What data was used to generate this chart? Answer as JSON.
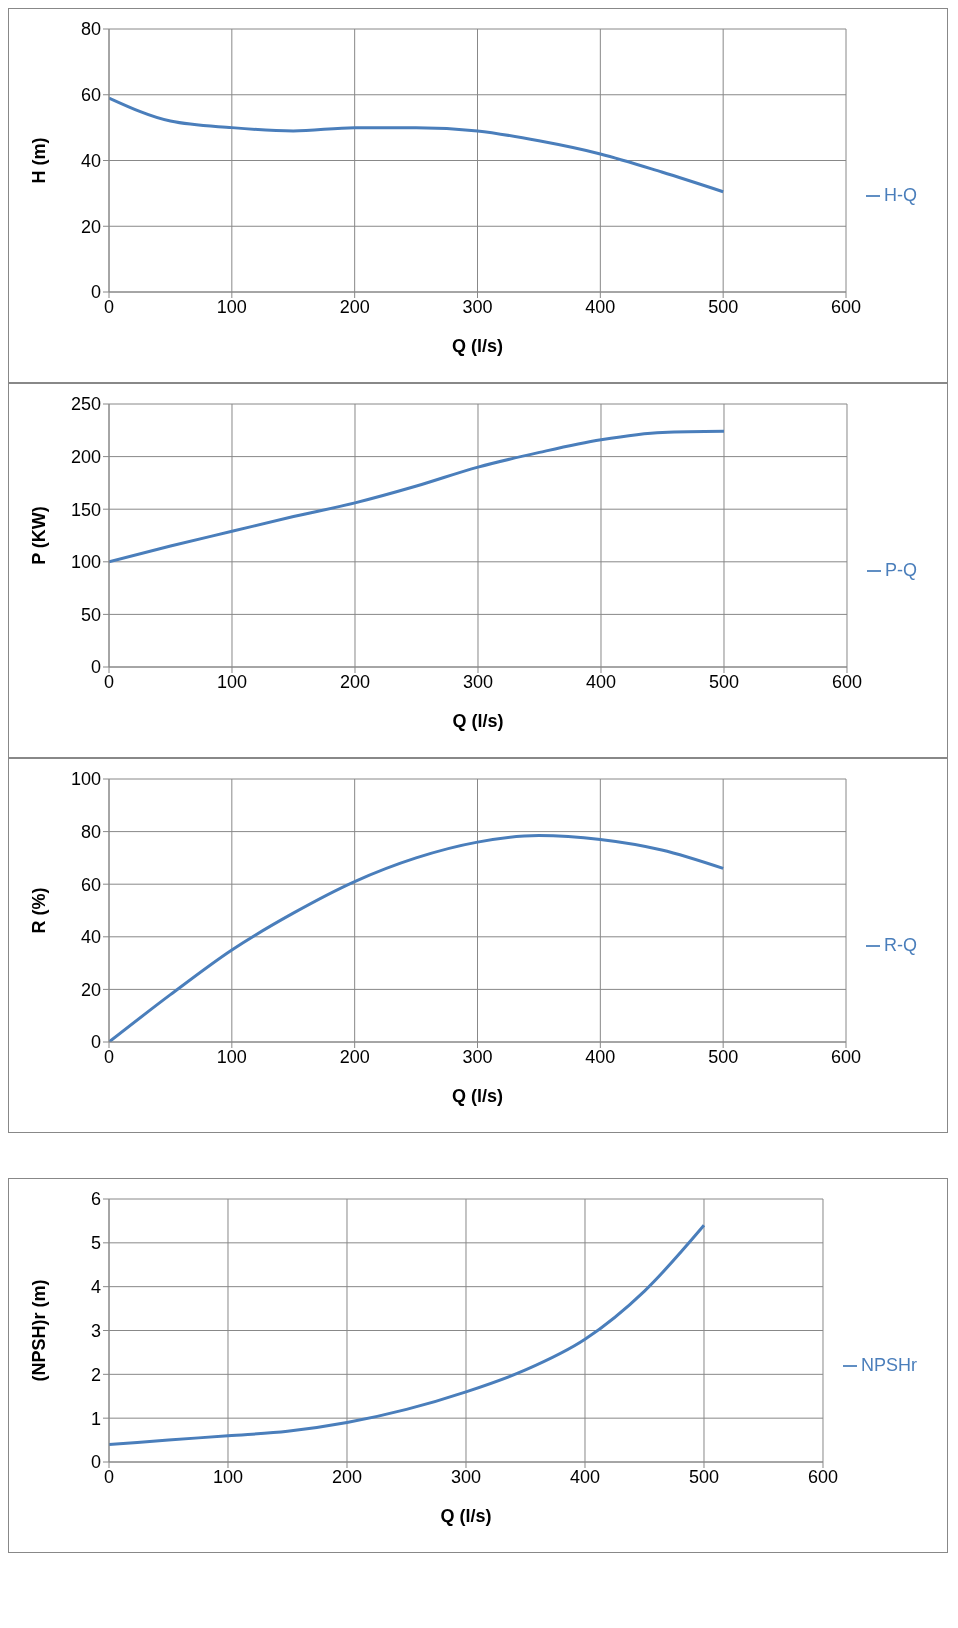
{
  "chart_data": [
    {
      "type": "line",
      "x": [
        0,
        50,
        100,
        150,
        200,
        250,
        300,
        350,
        400,
        450,
        500
      ],
      "series": [
        {
          "name": "H-Q",
          "color": "#4a7ebb",
          "values": [
            59,
            52,
            50,
            49,
            50,
            50,
            49,
            46,
            42,
            36.5,
            30.5
          ]
        }
      ],
      "xlabel": "Q      (l/s)",
      "ylabel": "H       (m)",
      "xlim": [
        0,
        600
      ],
      "xticks": [
        0,
        100,
        200,
        300,
        400,
        500,
        600
      ],
      "ylim": [
        0,
        80
      ],
      "yticks": [
        0,
        20,
        40,
        60,
        80
      ],
      "grid": true,
      "legend": "right",
      "marker": "none"
    },
    {
      "type": "line",
      "x": [
        0,
        50,
        100,
        150,
        200,
        250,
        300,
        350,
        400,
        450,
        500
      ],
      "series": [
        {
          "name": "P-Q",
          "color": "#4a7ebb",
          "values": [
            100,
            115,
            129,
            143,
            156,
            172,
            190,
            204,
            216,
            223,
            224
          ]
        }
      ],
      "xlabel": "Q        (l/s)",
      "ylabel": "P      (KW)",
      "xlim": [
        0,
        600
      ],
      "xticks": [
        0,
        100,
        200,
        300,
        400,
        500,
        600
      ],
      "ylim": [
        0,
        250
      ],
      "yticks": [
        0,
        50,
        100,
        150,
        200,
        250
      ],
      "grid": true,
      "legend": "right",
      "marker": "none"
    },
    {
      "type": "line",
      "x": [
        0,
        50,
        100,
        150,
        200,
        250,
        300,
        350,
        400,
        450,
        500
      ],
      "series": [
        {
          "name": "R-Q",
          "color": "#4a7ebb",
          "values": [
            0,
            18,
            35,
            49,
            61,
            70,
            76,
            78.5,
            77,
            73,
            66
          ]
        }
      ],
      "xlabel": "Q      (l/s)",
      "ylabel": "R         (%)",
      "xlim": [
        0,
        600
      ],
      "xticks": [
        0,
        100,
        200,
        300,
        400,
        500,
        600
      ],
      "ylim": [
        0,
        100
      ],
      "yticks": [
        0,
        20,
        40,
        60,
        80,
        100
      ],
      "grid": true,
      "legend": "right",
      "marker": "none"
    },
    {
      "type": "line",
      "x": [
        0,
        50,
        100,
        150,
        200,
        250,
        300,
        350,
        400,
        450,
        500
      ],
      "series": [
        {
          "name": "NPSHr",
          "color": "#4a7ebb",
          "values": [
            0.4,
            0.5,
            0.6,
            0.7,
            0.9,
            1.2,
            1.6,
            2.1,
            2.8,
            3.9,
            5.4
          ]
        }
      ],
      "xlabel": "Q       (l/s)",
      "ylabel": "(NPSH)r  (m)",
      "xlim": [
        0,
        600
      ],
      "xticks": [
        0,
        100,
        200,
        300,
        400,
        500,
        600
      ],
      "ylim": [
        0,
        6
      ],
      "yticks": [
        0,
        1,
        2,
        3,
        4,
        5,
        6
      ],
      "grid": true,
      "legend": "right",
      "marker": "none"
    }
  ]
}
